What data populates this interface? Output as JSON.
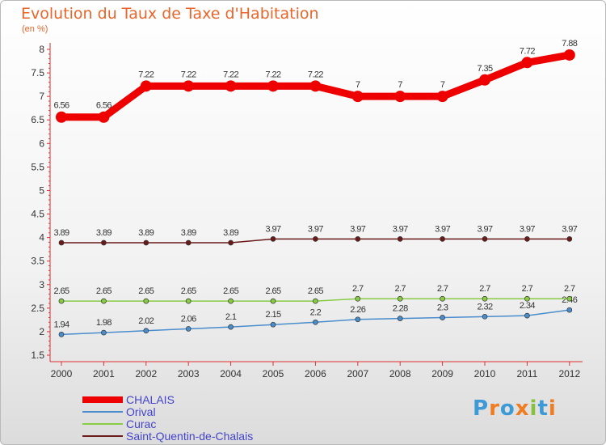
{
  "chart_data": {
    "type": "line",
    "title": "Evolution du Taux de Taxe d'Habitation",
    "ylabel": "(en %)",
    "xlabel": "",
    "x": [
      "2000",
      "2001",
      "2002",
      "2003",
      "2004",
      "2005",
      "2006",
      "2007",
      "2008",
      "2009",
      "2010",
      "2011",
      "2012"
    ],
    "ylim": [
      1.5,
      8
    ],
    "yticks": [
      "1.5",
      "2",
      "2.5",
      "3",
      "3.5",
      "4",
      "4.5",
      "5",
      "5.5",
      "6",
      "6.5",
      "7",
      "7.5",
      "8"
    ],
    "series": [
      {
        "name": "CHALAIS",
        "color": "#ee0000",
        "values": [
          6.56,
          6.56,
          7.22,
          7.22,
          7.22,
          7.22,
          7.22,
          7,
          7,
          7,
          7.35,
          7.72,
          7.88
        ],
        "labels": [
          "6.56",
          "6.56",
          "7.22",
          "7.22",
          "7.22",
          "7.22",
          "7.22",
          "7",
          "7",
          "7",
          "7.35",
          "7.72",
          "7.88"
        ]
      },
      {
        "name": "Orival",
        "color": "#4a8dcc",
        "values": [
          1.94,
          1.98,
          2.02,
          2.06,
          2.1,
          2.15,
          2.2,
          2.26,
          2.28,
          2.3,
          2.32,
          2.34,
          2.46
        ],
        "labels": [
          "1.94",
          "1.98",
          "2.02",
          "2.06",
          "2.1",
          "2.15",
          "2.2",
          "2.26",
          "2.28",
          "2.3",
          "2.32",
          "2.34",
          "2.46"
        ]
      },
      {
        "name": "Curac",
        "color": "#88cc44",
        "values": [
          2.65,
          2.65,
          2.65,
          2.65,
          2.65,
          2.65,
          2.65,
          2.7,
          2.7,
          2.7,
          2.7,
          2.7,
          2.7
        ],
        "labels": [
          "2.65",
          "2.65",
          "2.65",
          "2.65",
          "2.65",
          "2.65",
          "2.65",
          "2.7",
          "2.7",
          "2.7",
          "2.7",
          "2.7",
          "2.7"
        ]
      },
      {
        "name": "Saint-Quentin-de-Chalais",
        "color": "#6b1a1a",
        "values": [
          3.89,
          3.89,
          3.89,
          3.89,
          3.89,
          3.97,
          3.97,
          3.97,
          3.97,
          3.97,
          3.97,
          3.97,
          3.97
        ],
        "labels": [
          "3.89",
          "3.89",
          "3.89",
          "3.89",
          "3.89",
          "3.97",
          "3.97",
          "3.97",
          "3.97",
          "3.97",
          "3.97",
          "3.97",
          "3.97"
        ]
      }
    ],
    "grid": false,
    "legend_position": "bottom-left"
  },
  "logo": {
    "letters": [
      "P",
      "r",
      "o",
      "x",
      "i",
      "t",
      "i"
    ],
    "colors": [
      "#3c9ad6",
      "#f07c22",
      "#3c9ad6",
      "#f07c22",
      "#88c13e",
      "#3c9ad6",
      "#f07c22"
    ]
  }
}
